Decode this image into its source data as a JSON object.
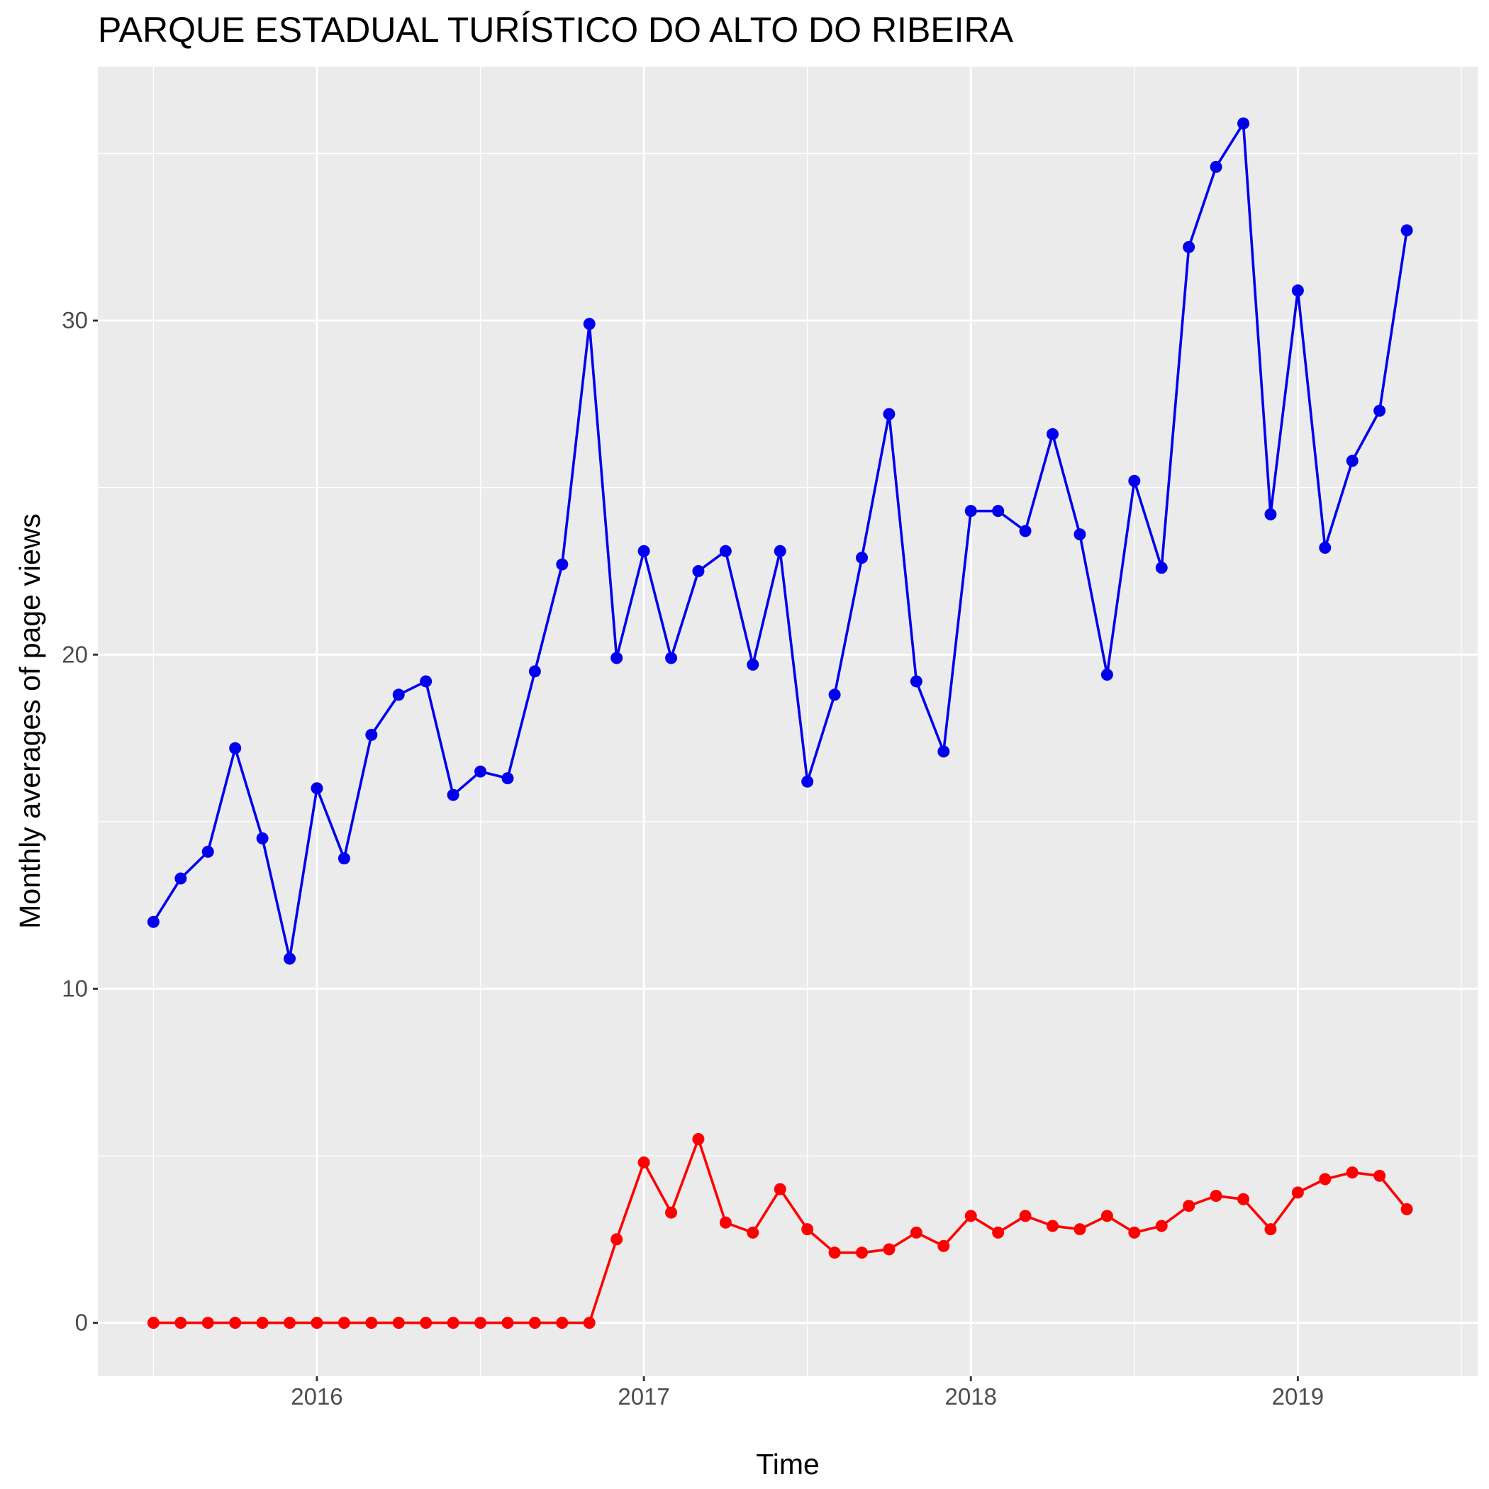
{
  "chart_data": {
    "type": "line",
    "title": "PARQUE ESTADUAL TURÍSTICO DO ALTO DO RIBEIRA",
    "xlabel": "Time",
    "ylabel": "Monthly averages of page views",
    "x_ticks": [
      2016,
      2017,
      2018,
      2019
    ],
    "y_ticks": [
      0,
      10,
      20,
      30
    ],
    "xlim": [
      2015.33,
      2019.55
    ],
    "ylim": [
      -1.6,
      37.6
    ],
    "grid": true,
    "legend": "none",
    "x": [
      "2015-07",
      "2015-08",
      "2015-09",
      "2015-10",
      "2015-11",
      "2015-12",
      "2016-01",
      "2016-02",
      "2016-03",
      "2016-04",
      "2016-05",
      "2016-06",
      "2016-07",
      "2016-08",
      "2016-09",
      "2016-10",
      "2016-11",
      "2016-12",
      "2017-01",
      "2017-02",
      "2017-03",
      "2017-04",
      "2017-05",
      "2017-06",
      "2017-07",
      "2017-08",
      "2017-09",
      "2017-10",
      "2017-11",
      "2017-12",
      "2018-01",
      "2018-02",
      "2018-03",
      "2018-04",
      "2018-05",
      "2018-06",
      "2018-07",
      "2018-08",
      "2018-09",
      "2018-10",
      "2018-11",
      "2018-12",
      "2019-01",
      "2019-02",
      "2019-03",
      "2019-04",
      "2019-05"
    ],
    "series": [
      {
        "color": "#0000ee",
        "values": [
          12.0,
          13.3,
          14.1,
          17.2,
          14.5,
          10.9,
          16.0,
          13.9,
          17.6,
          18.8,
          19.2,
          15.8,
          16.5,
          16.3,
          19.5,
          22.7,
          29.9,
          19.9,
          23.1,
          19.9,
          22.5,
          23.1,
          19.7,
          23.1,
          16.2,
          18.8,
          22.9,
          27.2,
          19.2,
          17.1,
          24.3,
          24.3,
          23.7,
          26.6,
          23.6,
          19.4,
          25.2,
          22.6,
          32.2,
          34.6,
          35.9,
          24.2,
          30.9,
          23.2,
          25.8,
          27.3,
          32.7
        ]
      },
      {
        "color": "#ff0000",
        "values": [
          0,
          0,
          0,
          0,
          0,
          0,
          0,
          0,
          0,
          0,
          0,
          0,
          0,
          0,
          0,
          0,
          0,
          2.5,
          4.8,
          3.3,
          5.5,
          3.0,
          2.7,
          4.0,
          2.8,
          2.1,
          2.1,
          2.2,
          2.7,
          2.3,
          3.2,
          2.7,
          3.2,
          2.9,
          2.8,
          3.2,
          2.7,
          2.9,
          3.5,
          3.8,
          3.7,
          2.8,
          3.9,
          4.3,
          4.5,
          4.4,
          3.4
        ]
      }
    ]
  }
}
